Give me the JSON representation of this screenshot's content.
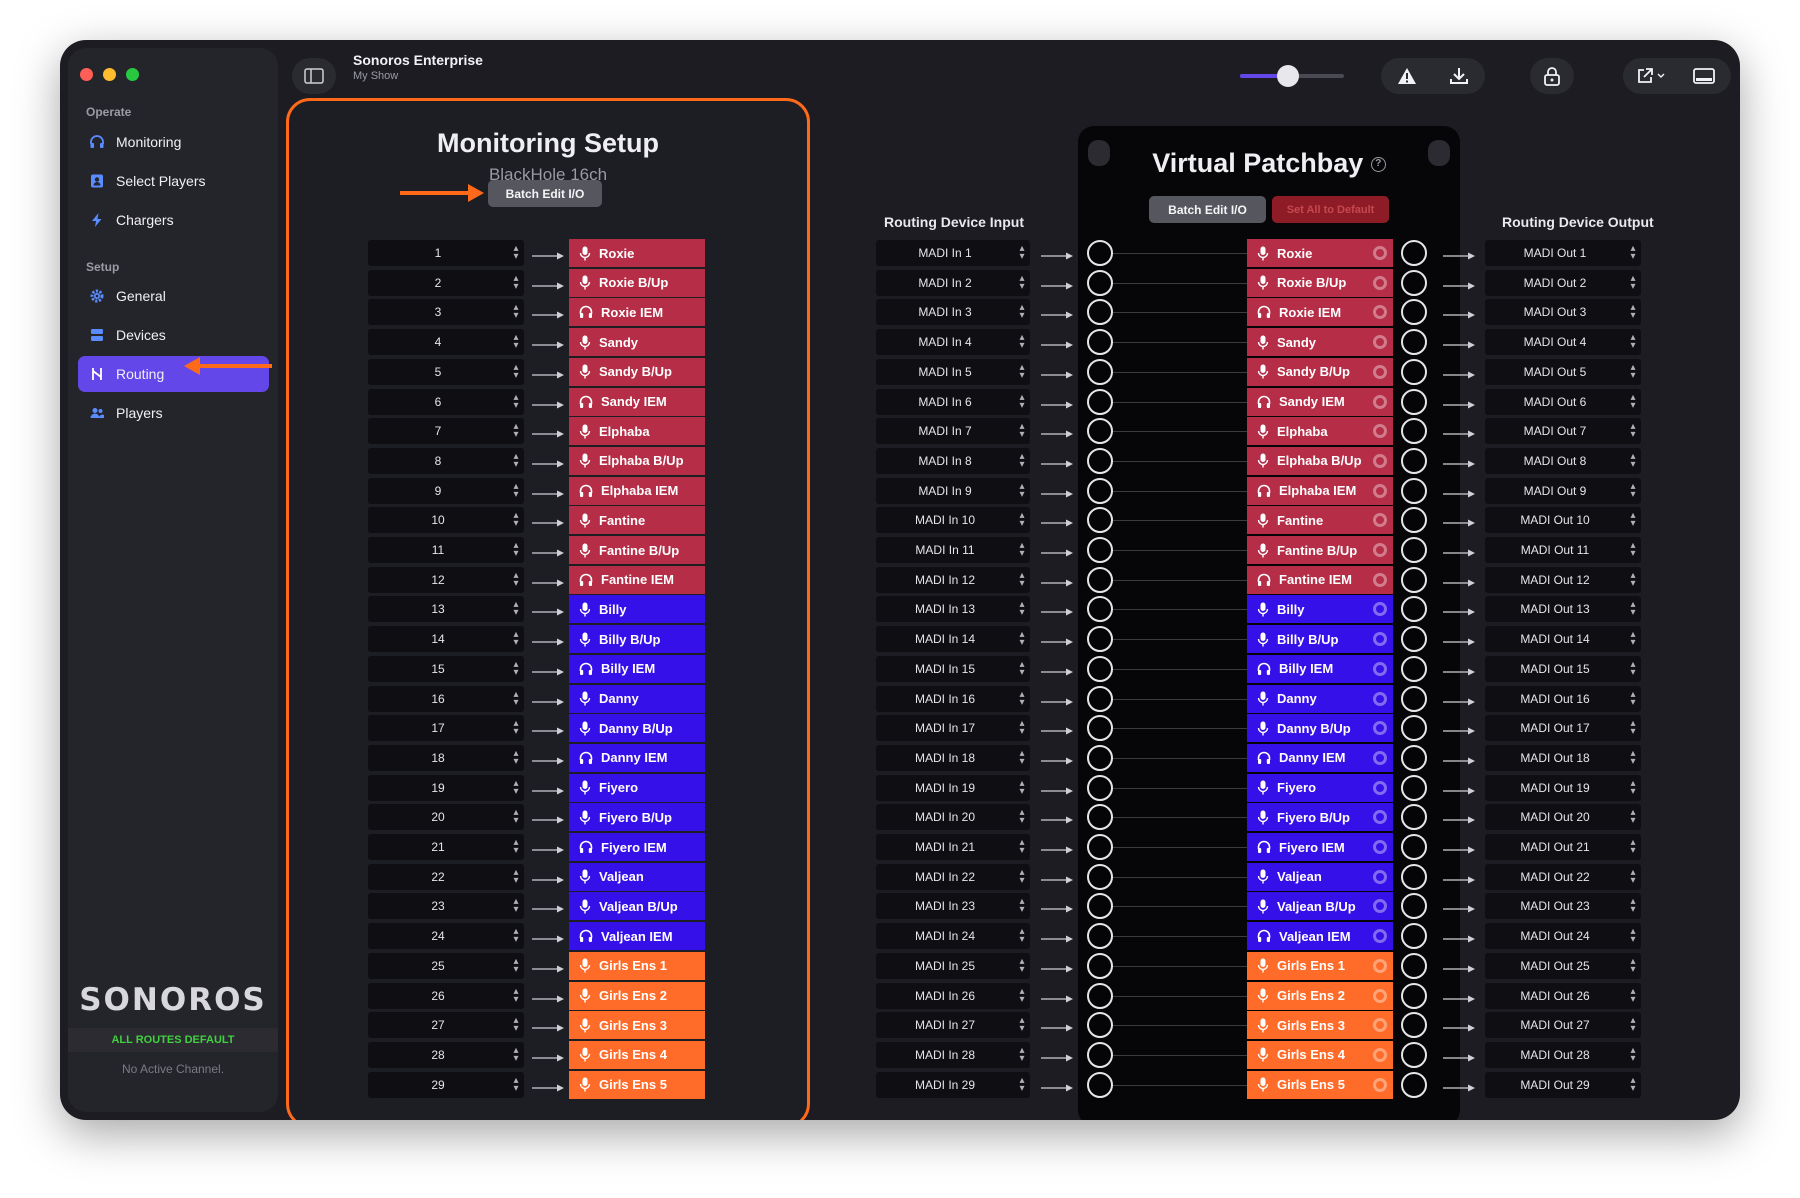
{
  "window": {
    "app_title": "Sonoros Enterprise",
    "app_subtitle": "My Show"
  },
  "colors": {
    "accent": "#6347e8",
    "highlight_orange": "#ff6a1a",
    "red_group": "#b52d46",
    "blue_group": "#3610e8",
    "orange_group": "#ff6c29"
  },
  "sidebar": {
    "sections": [
      {
        "label": "Operate",
        "items": [
          {
            "label": "Monitoring",
            "icon": "headphones-icon",
            "active": false
          },
          {
            "label": "Select Players",
            "icon": "contact-card-icon",
            "active": false
          },
          {
            "label": "Chargers",
            "icon": "lightning-icon",
            "active": false
          }
        ]
      },
      {
        "label": "Setup",
        "items": [
          {
            "label": "General",
            "icon": "gear-icon",
            "active": false
          },
          {
            "label": "Devices",
            "icon": "server-icon",
            "active": false
          },
          {
            "label": "Routing",
            "icon": "routing-icon",
            "active": true
          },
          {
            "label": "Players",
            "icon": "people-icon",
            "active": false
          }
        ]
      }
    ],
    "brand": "SONOROS",
    "routes_status": "ALL ROUTES DEFAULT",
    "active_channel": "No Active Channel."
  },
  "toolbar": {
    "icons": [
      "sidebar-toggle-icon",
      "warning-icon",
      "download-icon",
      "lock-icon",
      "share-icon",
      "display-icon"
    ],
    "volume_level": 0.45
  },
  "monitoring": {
    "title": "Monitoring Setup",
    "device": "BlackHole 16ch",
    "batch_button": "Batch Edit I/O"
  },
  "patchbay": {
    "title": "Virtual Patchbay",
    "batch_button": "Batch Edit I/O",
    "reset_button": "Set All to Default",
    "input_header": "Routing Device Input",
    "output_header": "Routing Device Output"
  },
  "channels": [
    {
      "num": "1",
      "name": "Roxie",
      "type": "mic",
      "group": "red",
      "in": "MADI In 1",
      "out": "MADI Out 1"
    },
    {
      "num": "2",
      "name": "Roxie B/Up",
      "type": "mic",
      "group": "red",
      "in": "MADI In 2",
      "out": "MADI Out 2"
    },
    {
      "num": "3",
      "name": "Roxie IEM",
      "type": "headphones",
      "group": "red",
      "in": "MADI In 3",
      "out": "MADI Out 3"
    },
    {
      "num": "4",
      "name": "Sandy",
      "type": "mic",
      "group": "red",
      "in": "MADI In 4",
      "out": "MADI Out 4"
    },
    {
      "num": "5",
      "name": "Sandy B/Up",
      "type": "mic",
      "group": "red",
      "in": "MADI In 5",
      "out": "MADI Out 5"
    },
    {
      "num": "6",
      "name": "Sandy IEM",
      "type": "headphones",
      "group": "red",
      "in": "MADI In 6",
      "out": "MADI Out 6"
    },
    {
      "num": "7",
      "name": "Elphaba",
      "type": "mic",
      "group": "red",
      "in": "MADI In 7",
      "out": "MADI Out 7"
    },
    {
      "num": "8",
      "name": "Elphaba B/Up",
      "type": "mic",
      "group": "red",
      "in": "MADI In 8",
      "out": "MADI Out 8"
    },
    {
      "num": "9",
      "name": "Elphaba IEM",
      "type": "headphones",
      "group": "red",
      "in": "MADI In 9",
      "out": "MADI Out 9"
    },
    {
      "num": "10",
      "name": "Fantine",
      "type": "mic",
      "group": "red",
      "in": "MADI In 10",
      "out": "MADI Out 10"
    },
    {
      "num": "11",
      "name": "Fantine B/Up",
      "type": "mic",
      "group": "red",
      "in": "MADI In 11",
      "out": "MADI Out 11"
    },
    {
      "num": "12",
      "name": "Fantine IEM",
      "type": "headphones",
      "group": "red",
      "in": "MADI In 12",
      "out": "MADI Out 12"
    },
    {
      "num": "13",
      "name": "Billy",
      "type": "mic",
      "group": "blue",
      "in": "MADI In 13",
      "out": "MADI Out 13"
    },
    {
      "num": "14",
      "name": "Billy B/Up",
      "type": "mic",
      "group": "blue",
      "in": "MADI In 14",
      "out": "MADI Out 14"
    },
    {
      "num": "15",
      "name": "Billy IEM",
      "type": "headphones",
      "group": "blue",
      "in": "MADI In 15",
      "out": "MADI Out 15"
    },
    {
      "num": "16",
      "name": "Danny",
      "type": "mic",
      "group": "blue",
      "in": "MADI In 16",
      "out": "MADI Out 16"
    },
    {
      "num": "17",
      "name": "Danny B/Up",
      "type": "mic",
      "group": "blue",
      "in": "MADI In 17",
      "out": "MADI Out 17"
    },
    {
      "num": "18",
      "name": "Danny IEM",
      "type": "headphones",
      "group": "blue",
      "in": "MADI In 18",
      "out": "MADI Out 18"
    },
    {
      "num": "19",
      "name": "Fiyero",
      "type": "mic",
      "group": "blue",
      "in": "MADI In 19",
      "out": "MADI Out 19"
    },
    {
      "num": "20",
      "name": "Fiyero B/Up",
      "type": "mic",
      "group": "blue",
      "in": "MADI In 20",
      "out": "MADI Out 20"
    },
    {
      "num": "21",
      "name": "Fiyero IEM",
      "type": "headphones",
      "group": "blue",
      "in": "MADI In 21",
      "out": "MADI Out 21"
    },
    {
      "num": "22",
      "name": "Valjean",
      "type": "mic",
      "group": "blue",
      "in": "MADI In 22",
      "out": "MADI Out 22"
    },
    {
      "num": "23",
      "name": "Valjean B/Up",
      "type": "mic",
      "group": "blue",
      "in": "MADI In 23",
      "out": "MADI Out 23"
    },
    {
      "num": "24",
      "name": "Valjean IEM",
      "type": "headphones",
      "group": "blue",
      "in": "MADI In 24",
      "out": "MADI Out 24"
    },
    {
      "num": "25",
      "name": "Girls Ens 1",
      "type": "mic",
      "group": "orange",
      "in": "MADI In 25",
      "out": "MADI Out 25"
    },
    {
      "num": "26",
      "name": "Girls Ens 2",
      "type": "mic",
      "group": "orange",
      "in": "MADI In 26",
      "out": "MADI Out 26"
    },
    {
      "num": "27",
      "name": "Girls Ens 3",
      "type": "mic",
      "group": "orange",
      "in": "MADI In 27",
      "out": "MADI Out 27"
    },
    {
      "num": "28",
      "name": "Girls Ens 4",
      "type": "mic",
      "group": "orange",
      "in": "MADI In 28",
      "out": "MADI Out 28"
    },
    {
      "num": "29",
      "name": "Girls Ens 5",
      "type": "mic",
      "group": "orange",
      "in": "MADI In 29",
      "out": "MADI Out 29"
    }
  ]
}
